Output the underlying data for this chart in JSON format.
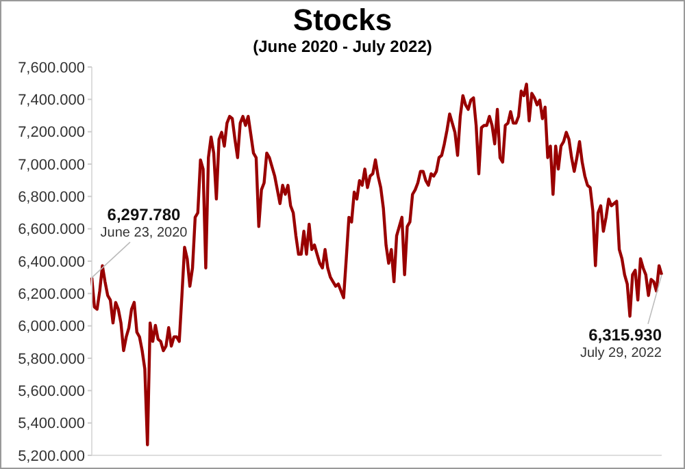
{
  "chart_data": {
    "type": "line",
    "title": "Stocks",
    "subtitle": "(June 2020 - July 2022)",
    "categories": [
      null,
      null,
      null,
      null,
      null,
      null,
      null,
      null,
      null,
      null,
      null,
      null,
      null,
      null,
      null,
      null,
      null,
      null,
      null,
      null,
      null,
      null,
      null,
      null,
      null,
      null,
      null,
      null,
      null,
      null,
      null,
      null,
      null,
      null,
      null,
      null,
      null,
      null,
      null,
      null,
      null,
      null,
      null,
      null,
      null,
      null,
      null,
      null,
      null,
      null,
      null,
      null,
      null,
      null,
      null,
      null,
      null,
      null,
      null,
      null,
      null,
      null,
      null,
      null,
      null,
      null,
      null,
      null,
      null,
      null,
      null,
      null,
      null,
      null,
      null,
      null,
      null,
      null,
      null,
      null,
      null,
      null,
      null,
      null,
      null,
      null,
      null,
      null,
      null,
      null,
      null,
      null,
      null,
      null,
      null,
      null,
      null,
      null,
      null,
      null,
      null,
      null,
      null,
      null,
      null,
      null,
      null,
      null,
      null,
      null,
      null,
      null,
      null,
      null,
      null,
      null,
      null,
      null,
      null,
      null,
      null,
      null,
      null,
      null,
      null,
      null,
      null,
      null,
      null,
      null,
      null,
      null,
      null,
      null,
      null,
      null,
      null,
      null,
      null,
      null,
      null,
      null,
      null,
      null,
      null,
      null,
      null,
      null,
      null,
      null,
      null,
      null,
      null,
      null,
      null,
      null,
      null,
      null,
      null,
      null,
      null,
      null,
      null,
      null,
      null,
      null,
      null,
      null,
      null,
      null,
      null,
      null,
      null,
      null,
      null,
      null,
      null,
      null,
      null,
      null,
      null,
      null,
      null,
      null,
      null,
      null,
      null,
      null,
      null,
      null,
      null,
      null,
      null,
      null,
      null,
      null,
      null,
      null,
      null,
      null,
      null,
      null,
      null,
      null,
      null,
      null,
      null,
      null,
      null,
      null,
      null,
      null,
      null,
      null,
      null,
      null
    ],
    "series": [
      {
        "color": "#990000",
        "values": [
          6298,
          6117,
          6103,
          6216,
          6372,
          6273,
          6188,
          6160,
          6018,
          6145,
          6103,
          6018,
          5847,
          5932,
          5989,
          6103,
          6145,
          5961,
          5932,
          5847,
          5734,
          5265,
          6018,
          5904,
          6003,
          5918,
          5904,
          5847,
          5875,
          5989,
          5875,
          5932,
          5932,
          5904,
          6188,
          6486,
          6415,
          6245,
          6358,
          6671,
          6699,
          7026,
          6969,
          6358,
          7040,
          7167,
          7068,
          6784,
          7153,
          7196,
          7111,
          7253,
          7295,
          7281,
          7153,
          7040,
          7253,
          7295,
          7239,
          7295,
          7182,
          7068,
          7040,
          6614,
          6841,
          6884,
          7068,
          7040,
          6983,
          6926,
          6841,
          6756,
          6869,
          6813,
          6869,
          6742,
          6699,
          6557,
          6443,
          6443,
          6585,
          6443,
          6628,
          6472,
          6500,
          6443,
          6387,
          6358,
          6472,
          6358,
          6301,
          6273,
          6245,
          6259,
          6216,
          6174,
          6415,
          6671,
          6642,
          6827,
          6784,
          6898,
          6869,
          6969,
          6855,
          6926,
          6940,
          7026,
          6926,
          6855,
          6727,
          6500,
          6387,
          6472,
          6273,
          6557,
          6614,
          6671,
          6316,
          6614,
          6642,
          6813,
          6841,
          6884,
          6955,
          6955,
          6898,
          6869,
          6940,
          6926,
          6955,
          7040,
          7054,
          7125,
          7210,
          7310,
          7253,
          7196,
          7054,
          7295,
          7423,
          7366,
          7338,
          7395,
          7409,
          7239,
          6940,
          7225,
          7239,
          7239,
          7295,
          7239,
          7125,
          7338,
          7040,
          7012,
          7239,
          7253,
          7324,
          7253,
          7253,
          7295,
          7451,
          7423,
          7494,
          7267,
          7437,
          7409,
          7366,
          7395,
          7281,
          7352,
          7040,
          7111,
          6813,
          7111,
          6969,
          7111,
          7139,
          7196,
          7153,
          7040,
          6955,
          7040,
          7139,
          7012,
          6926,
          6869,
          6855,
          6714,
          6372,
          6699,
          6742,
          6585,
          6671,
          6784,
          6742,
          6756,
          6770,
          6472,
          6415,
          6316,
          6259,
          6060,
          6316,
          6344,
          6160,
          6415,
          6358,
          6316,
          6188,
          6287,
          6273,
          6216,
          6372,
          6316
        ]
      }
    ],
    "ylim": [
      5200,
      7600
    ],
    "yticks": [
      {
        "value": 5200,
        "label": "5,200.000"
      },
      {
        "value": 5400,
        "label": "5,400.000"
      },
      {
        "value": 5600,
        "label": "5,600.000"
      },
      {
        "value": 5800,
        "label": "5,800.000"
      },
      {
        "value": 6000,
        "label": "6,000.000"
      },
      {
        "value": 6200,
        "label": "6,200.000"
      },
      {
        "value": 6400,
        "label": "6,400.000"
      },
      {
        "value": 6600,
        "label": "6,600.000"
      },
      {
        "value": 6800,
        "label": "6,800.000"
      },
      {
        "value": 7000,
        "label": "7,000.000"
      },
      {
        "value": 7200,
        "label": "7,200.000"
      },
      {
        "value": 7400,
        "label": "7,400.000"
      },
      {
        "value": 7600,
        "label": "7,600.000"
      }
    ],
    "tick_labels": "y",
    "grid": false,
    "legend": false,
    "marker": "none",
    "line_style": "solid",
    "annotations": [
      "6,297.780\nJune 23, 2020",
      "6,315.930\nJuly 29, 2022"
    ]
  }
}
